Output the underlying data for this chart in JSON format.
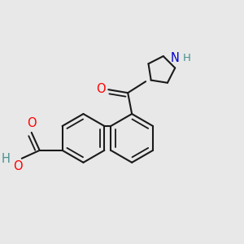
{
  "bg_color": "#e8e8e8",
  "bond_color": "#1a1a1a",
  "bond_width": 1.5,
  "dbo": 0.055,
  "O_color": "#ff0000",
  "N_color": "#0000cc",
  "H_color": "#4a9090",
  "fs": 10.5,
  "xlim": [
    -1.45,
    1.45
  ],
  "ylim": [
    -0.95,
    0.95
  ]
}
